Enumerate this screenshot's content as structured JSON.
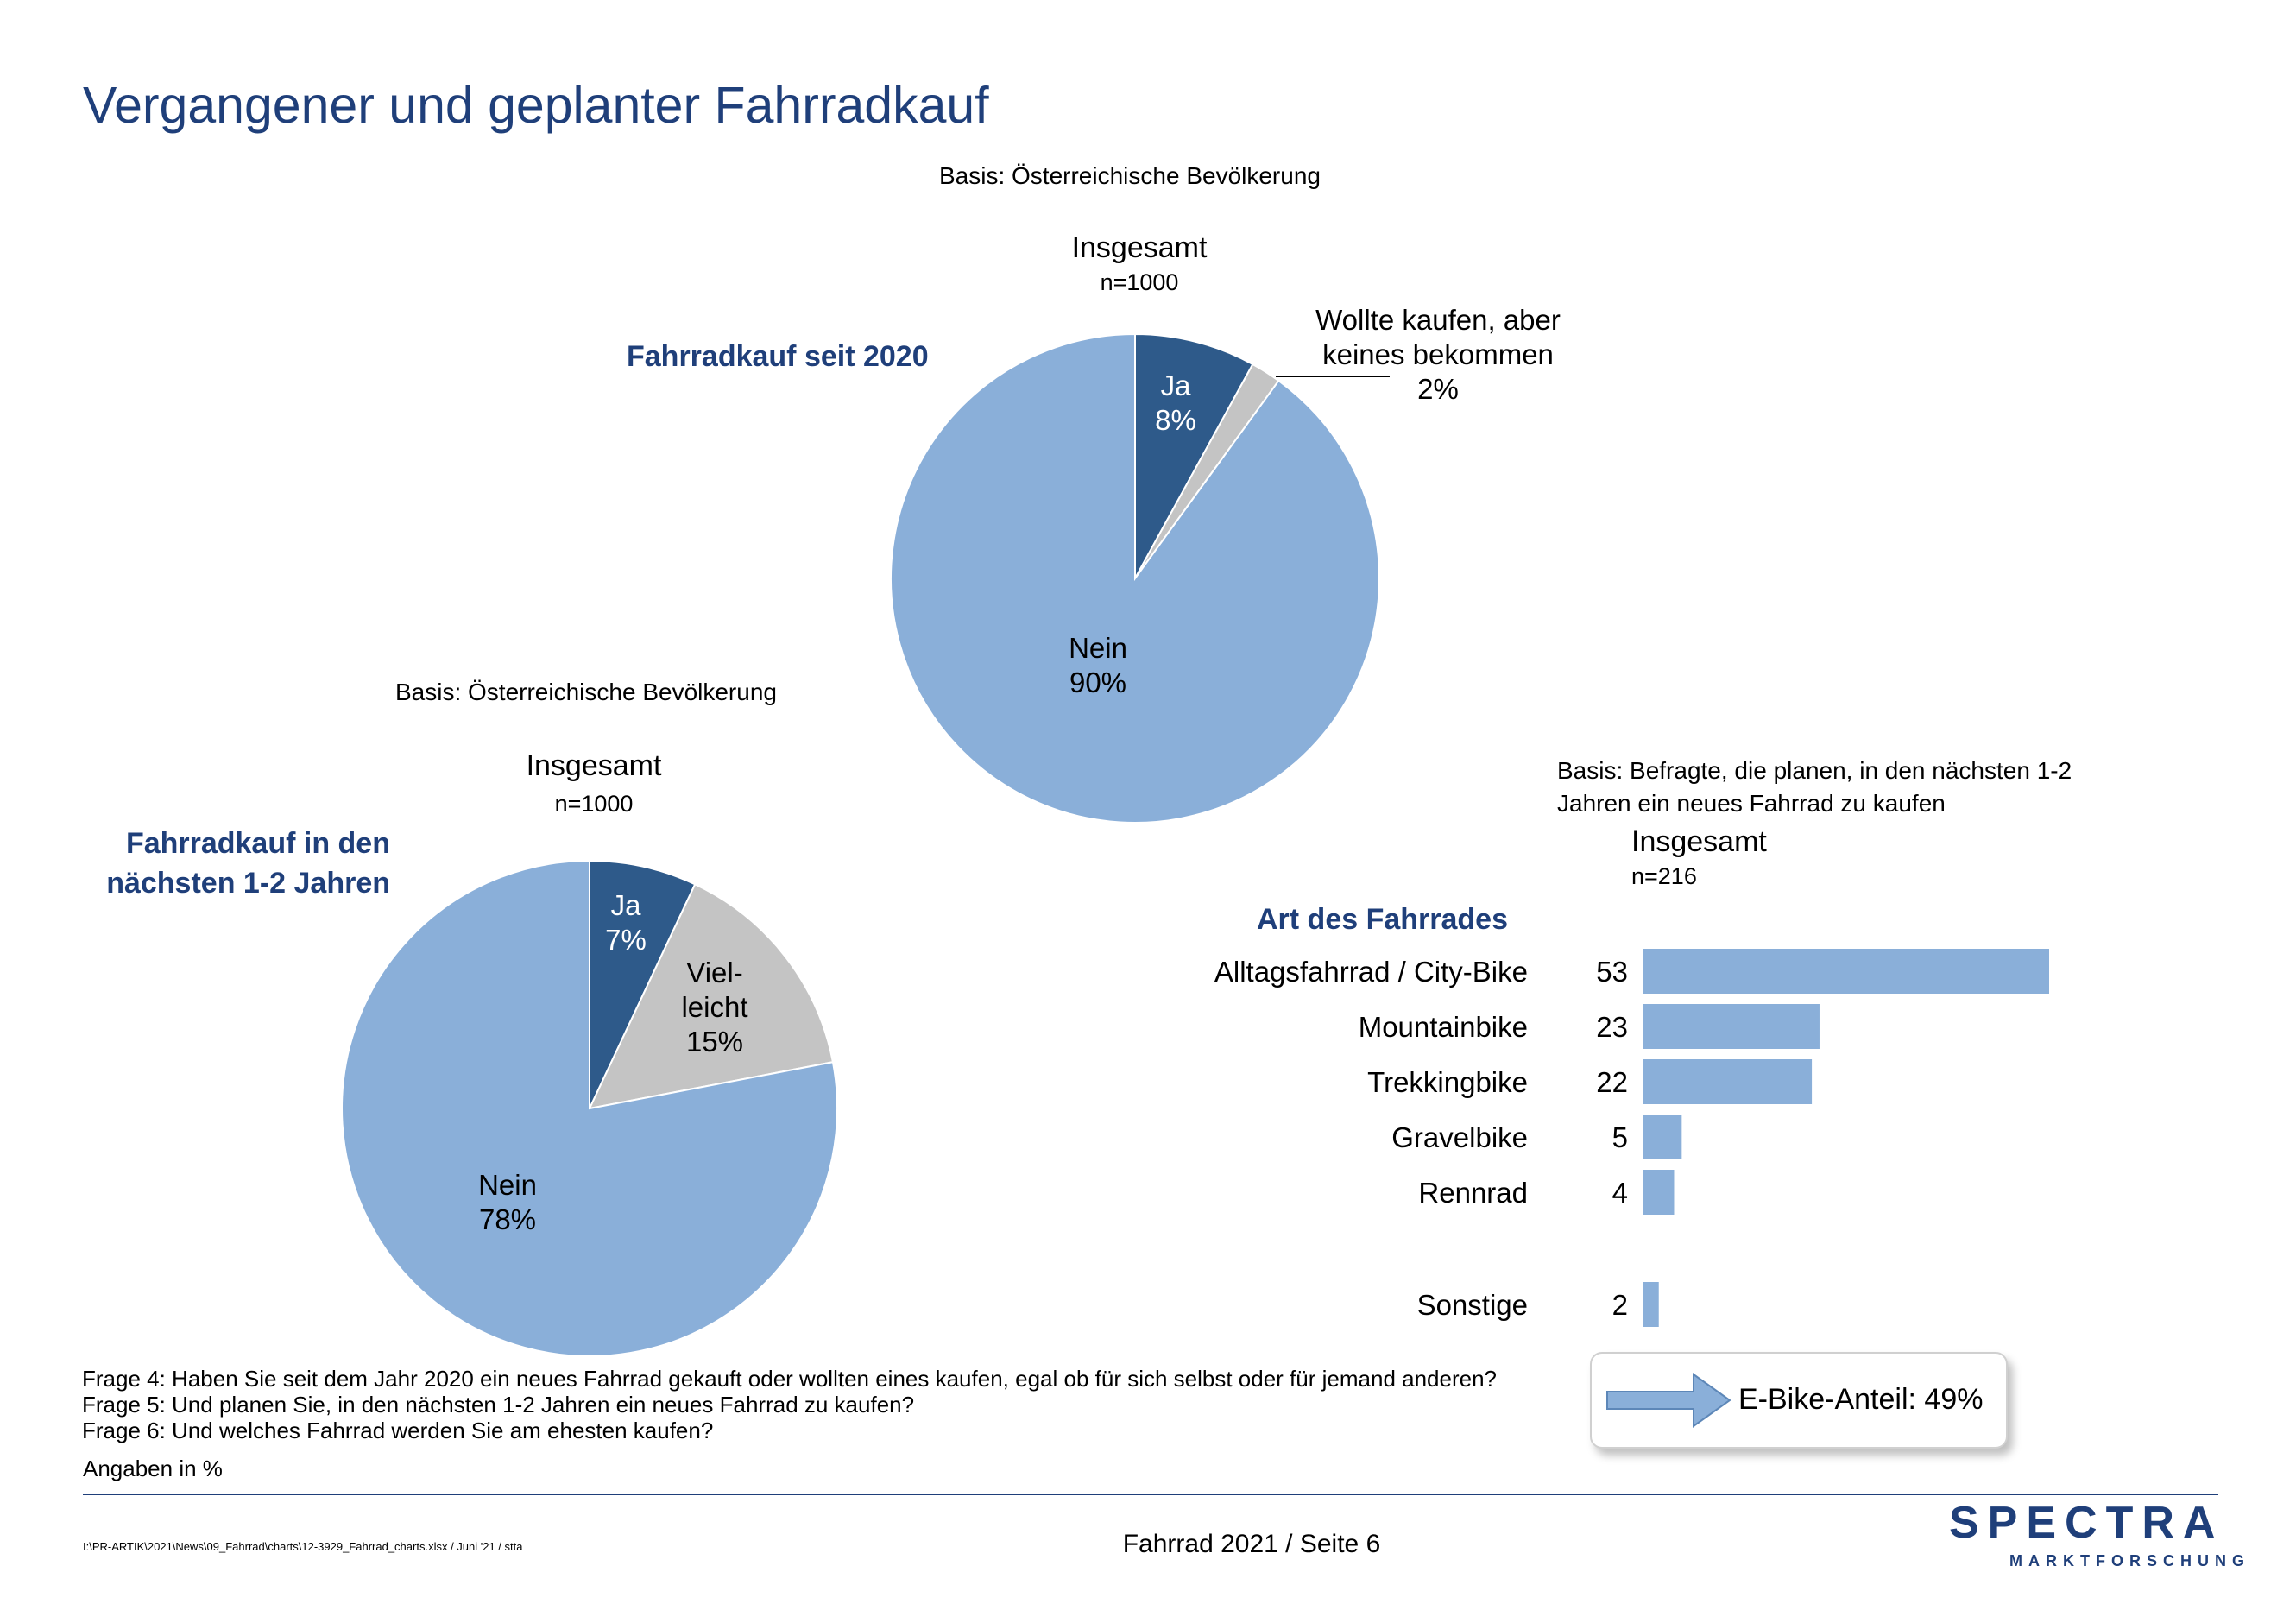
{
  "page": {
    "title": "Vergangener und geplanter Fahrradkauf",
    "questions": [
      "Frage 4: Haben Sie seit dem Jahr 2020 ein neues Fahrrad gekauft oder wollten eines kaufen, egal ob für sich selbst oder für jemand anderen?",
      "Frage 5: Und planen Sie, in den nächsten 1-2 Jahren ein neues Fahrrad zu kaufen?",
      "Frage 6: Und welches Fahrrad werden Sie am ehesten kaufen?"
    ],
    "unit_note": "Angaben in %",
    "file_path": "I:\\PR-ARTIK\\2021\\News\\09_Fahrrad\\charts\\12-3929_Fahrrad_charts.xlsx / Juni '21 / stta",
    "footer": "Fahrrad 2021  /  Seite  6",
    "logo": {
      "name": "SPECTRA",
      "subtitle": "MARKTFORSCHUNG"
    },
    "ebike_note": "E-Bike-Anteil: 49%",
    "colors": {
      "dark_blue": "#2e5a8a",
      "light_blue": "#8aafd9",
      "gray": "#c4c4c4",
      "title_blue": "#1f3f7a"
    }
  },
  "chart_data": [
    {
      "type": "pie",
      "title": "Fahrradkauf seit 2020",
      "basis": "Basis: Österreichische Bevölkerung",
      "group": "Insgesamt",
      "n": "n=1000",
      "start": "12 o'clock",
      "direction": "clockwise",
      "slices": [
        {
          "label": "Ja",
          "value": 8,
          "display": "8%",
          "color": "#2e5a8a",
          "text_color": "#ffffff"
        },
        {
          "label": "Wollte kaufen, aber keines bekommen",
          "value": 2,
          "display": "2%",
          "color": "#c4c4c4",
          "text_color": "#000000"
        },
        {
          "label": "Nein",
          "value": 90,
          "display": "90%",
          "color": "#8aafd9",
          "text_color": "#000000"
        }
      ]
    },
    {
      "type": "pie",
      "title": "Fahrradkauf in den nächsten 1-2 Jahren",
      "basis": "Basis: Österreichische Bevölkerung",
      "group": "Insgesamt",
      "n": "n=1000",
      "start": "12 o'clock",
      "direction": "clockwise",
      "slices": [
        {
          "label": "Ja",
          "value": 7,
          "display": "7%",
          "color": "#2e5a8a",
          "text_color": "#ffffff"
        },
        {
          "label": "Vielleicht",
          "value": 15,
          "display": "15%",
          "color": "#c4c4c4",
          "text_color": "#000000"
        },
        {
          "label": "Nein",
          "value": 78,
          "display": "78%",
          "color": "#8aafd9",
          "text_color": "#000000"
        }
      ]
    },
    {
      "type": "bar",
      "orientation": "horizontal",
      "title": "Art des Fahrrades",
      "basis": "Basis: Befragte, die planen, in den nächsten 1-2 Jahren ein neues Fahrrad zu kaufen",
      "group": "Insgesamt",
      "n": "n=216",
      "color": "#8aafd9",
      "categories": [
        "Alltagsfahrrad / City-Bike",
        "Mountainbike",
        "Trekkingbike",
        "Gravelbike",
        "Rennrad",
        "Sonstige"
      ],
      "values": [
        53,
        23,
        22,
        5,
        4,
        2
      ]
    }
  ]
}
